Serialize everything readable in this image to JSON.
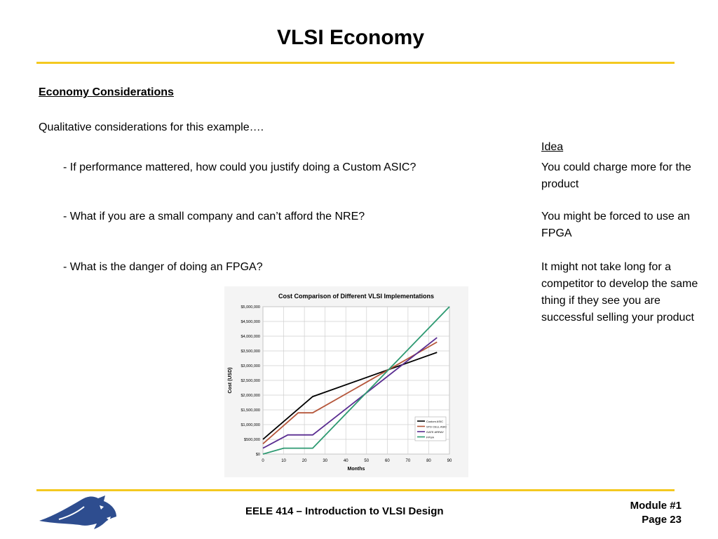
{
  "slide": {
    "title": "VLSI Economy",
    "heading": "Economy Considerations",
    "intro": "Qualitative considerations for this example….",
    "idea_label": "Idea",
    "items": [
      {
        "question": "- If performance mattered, how could you justify doing a Custom ASIC?",
        "answer": "You could charge more for the product"
      },
      {
        "question": "- What if you are a small company and can’t afford the NRE?",
        "answer": "You might be forced to use an FPGA"
      },
      {
        "question": "- What is the danger of doing an FPGA?",
        "answer": "It might not take long for a competitor to develop the same thing if they see you are successful selling your product"
      }
    ]
  },
  "footer": {
    "course": "EELE 414 – Introduction to VLSI Design",
    "module": "Module #1",
    "page": "Page 23"
  },
  "colors": {
    "accent_rule": "#f4c920",
    "logo_blue": "#2e4d8f"
  },
  "chart_data": {
    "type": "line",
    "title": "Cost Comparison of Different VLSI Implementations",
    "xlabel": "Months",
    "ylabel": "Cost (USD)",
    "xlim": [
      0,
      90
    ],
    "ylim": [
      0,
      5000000
    ],
    "x_ticks": [
      "0",
      "10",
      "20",
      "30",
      "40",
      "50",
      "60",
      "70",
      "80",
      "90"
    ],
    "y_ticks": [
      "$0",
      "$500,000",
      "$1,000,000",
      "$1,500,000",
      "$2,000,000",
      "$2,500,000",
      "$3,000,000",
      "$3,500,000",
      "$4,000,000",
      "$4,500,000",
      "$5,000,000"
    ],
    "grid": true,
    "legend_position": "bottom-right",
    "series": [
      {
        "name": "Custom ASIC",
        "color": "#000000",
        "points": [
          [
            0,
            500000
          ],
          [
            24,
            1950000
          ],
          [
            84,
            3450000
          ]
        ]
      },
      {
        "name": "STD CELL ASIC",
        "color": "#b5563a",
        "points": [
          [
            0,
            350000
          ],
          [
            17,
            1400000
          ],
          [
            24,
            1400000
          ],
          [
            84,
            3800000
          ]
        ]
      },
      {
        "name": "GATE ARRAY",
        "color": "#5a2d91",
        "points": [
          [
            0,
            200000
          ],
          [
            12,
            650000
          ],
          [
            24,
            650000
          ],
          [
            84,
            3950000
          ]
        ]
      },
      {
        "name": "FPGA",
        "color": "#2e9a72",
        "points": [
          [
            0,
            0
          ],
          [
            10,
            200000
          ],
          [
            24,
            200000
          ],
          [
            90,
            5000000
          ]
        ]
      }
    ]
  }
}
